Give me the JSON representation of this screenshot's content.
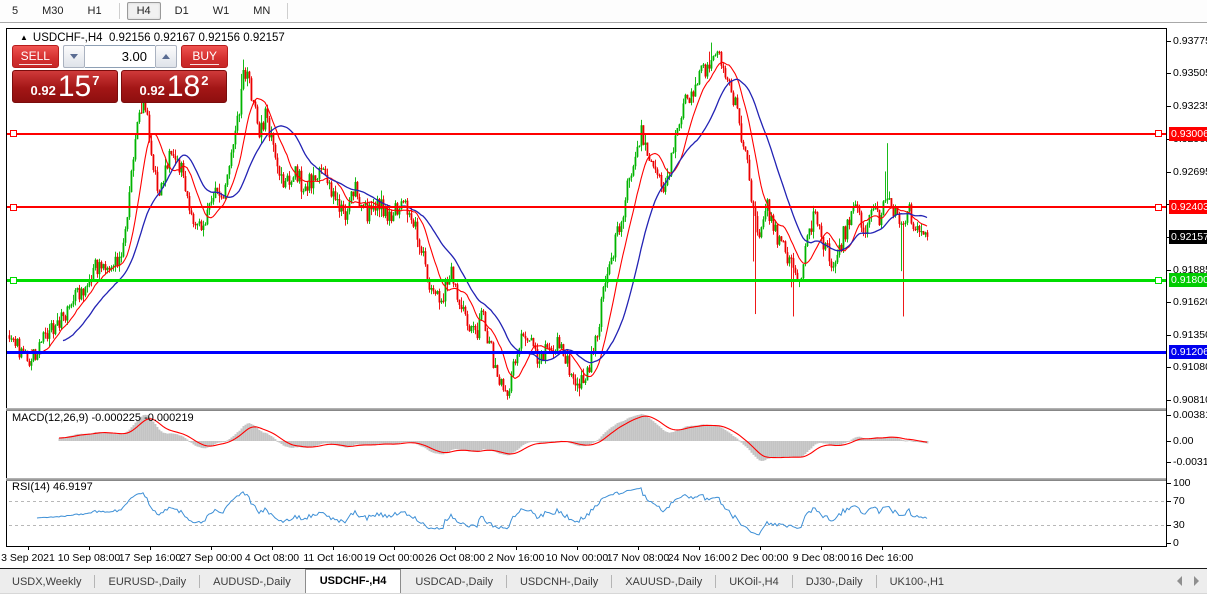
{
  "toolbar": {
    "timeframes": [
      "5",
      "M30",
      "H1",
      "H4",
      "D1",
      "W1",
      "MN"
    ],
    "active": "H4",
    "separators_before": [
      "H4"
    ],
    "separator_after_last": true
  },
  "chart": {
    "collapse_arrow": "▲",
    "symbol": "USDCHF-,H4",
    "ohlc": "0.92156 0.92167 0.92156 0.92157"
  },
  "trade_panel": {
    "sell_label": "SELL",
    "buy_label": "BUY",
    "volume": "3.00",
    "sell_price": {
      "prefix": "0.92",
      "big": "15",
      "sup": "7"
    },
    "buy_price": {
      "prefix": "0.92",
      "big": "18",
      "sup": "2"
    }
  },
  "price_axis": {
    "ticks": [
      "0.93775",
      "0.93505",
      "0.93235",
      "0.92965",
      "0.92695",
      "0.92425",
      "0.92155",
      "0.91885",
      "0.91620",
      "0.91350",
      "0.91080",
      "0.90810"
    ],
    "badges": [
      {
        "label": "0.93006",
        "bg": "#ff0000",
        "fg": "#ffffff"
      },
      {
        "label": "0.92403",
        "bg": "#ff0000",
        "fg": "#ffffff"
      },
      {
        "label": "0.92157",
        "bg": "#000000",
        "fg": "#ffffff"
      },
      {
        "label": "0.91800",
        "bg": "#00cc00",
        "fg": "#ffffff"
      },
      {
        "label": "0.91206",
        "bg": "#0000ee",
        "fg": "#ffffff"
      }
    ]
  },
  "time_axis": {
    "labels": [
      "3 Sep 2021",
      "10 Sep 08:00",
      "17 Sep 16:00",
      "27 Sep 00:00",
      "4 Oct 08:00",
      "11 Oct 16:00",
      "19 Oct 00:00",
      "26 Oct 08:00",
      "2 Nov 16:00",
      "10 Nov 00:00",
      "17 Nov 08:00",
      "24 Nov 16:00",
      "2 Dec 00:00",
      "9 Dec 08:00",
      "16 Dec 16:00"
    ]
  },
  "macd_pane": {
    "label": "MACD(12,26,9) -0.000225 -0.000219",
    "axis": [
      {
        "text": "0.003811",
        "value": 0.003811
      },
      {
        "text": "0.00",
        "value": 0
      },
      {
        "text": "-0.003115",
        "value": -0.003115
      }
    ]
  },
  "rsi_pane": {
    "label": "RSI(14) 46.9197",
    "axis": [
      {
        "text": "100",
        "value": 100
      },
      {
        "text": "70",
        "value": 70
      },
      {
        "text": "30",
        "value": 30
      },
      {
        "text": "0",
        "value": 0
      }
    ],
    "dashed_levels": [
      70,
      30
    ]
  },
  "tabs": {
    "items": [
      "USDX,Weekly",
      "EURUSD-,Daily",
      "AUDUSD-,Daily",
      "USDCHF-,H4",
      "USDCAD-,Daily",
      "USDCNH-,Daily",
      "XAUUSD-,Daily",
      "UKOil-,H4",
      "DJ30-,Daily",
      "UK100-,H1"
    ],
    "active": "USDCHF-,H4"
  },
  "colors": {
    "candle_up": "#00b400",
    "candle_down": "#ec0000",
    "ma_fast": "#ff0000",
    "ma_slow": "#2323b4",
    "macd_hist": "#c4c4c4",
    "macd_signal": "#ff0000",
    "rsi_line": "#3d8fd6",
    "rsi_dash": "#b8b8b8",
    "level_red": "#ff0000",
    "level_green": "#00dd00",
    "level_blue": "#0000ff"
  },
  "chart_data": {
    "type": "candlestick",
    "symbol": "USDCHF",
    "timeframe": "H4",
    "open": 0.92156,
    "high": 0.92167,
    "low": 0.92156,
    "close": 0.92157,
    "bid": 0.92157,
    "ask": 0.92182,
    "price_axis_range": {
      "top": 0.93872,
      "bottom": 0.90753
    },
    "axis_tick_step": 0.0027,
    "horizontal_levels": [
      {
        "price": 0.93006,
        "color": "#ff0000",
        "thickness": 2,
        "handles": true
      },
      {
        "price": 0.92403,
        "color": "#ff0000",
        "thickness": 2,
        "handles": true
      },
      {
        "price": 0.918,
        "color": "#00dd00",
        "thickness": 3,
        "handles": true
      },
      {
        "price": 0.91206,
        "color": "#0000ff",
        "thickness": 3,
        "handles": false
      }
    ],
    "current_price_marker": 0.92157,
    "bars_total": 460,
    "price_path_anchors": [
      [
        0.0,
        0.9137
      ],
      [
        0.011,
        0.9121
      ],
      [
        0.024,
        0.9112
      ],
      [
        0.043,
        0.914
      ],
      [
        0.059,
        0.9152
      ],
      [
        0.083,
        0.9178
      ],
      [
        0.1,
        0.9198
      ],
      [
        0.113,
        0.9185
      ],
      [
        0.128,
        0.9222
      ],
      [
        0.139,
        0.9312
      ],
      [
        0.147,
        0.9328
      ],
      [
        0.157,
        0.9268
      ],
      [
        0.165,
        0.9253
      ],
      [
        0.178,
        0.9292
      ],
      [
        0.189,
        0.9268
      ],
      [
        0.2,
        0.9232
      ],
      [
        0.211,
        0.9222
      ],
      [
        0.222,
        0.9252
      ],
      [
        0.23,
        0.924
      ],
      [
        0.241,
        0.9288
      ],
      [
        0.25,
        0.9318
      ],
      [
        0.255,
        0.9356
      ],
      [
        0.263,
        0.9338
      ],
      [
        0.272,
        0.9298
      ],
      [
        0.279,
        0.9318
      ],
      [
        0.289,
        0.9288
      ],
      [
        0.3,
        0.9256
      ],
      [
        0.311,
        0.9272
      ],
      [
        0.322,
        0.9254
      ],
      [
        0.333,
        0.9268
      ],
      [
        0.343,
        0.9278
      ],
      [
        0.354,
        0.9246
      ],
      [
        0.365,
        0.9232
      ],
      [
        0.376,
        0.9258
      ],
      [
        0.389,
        0.9234
      ],
      [
        0.402,
        0.9246
      ],
      [
        0.415,
        0.9228
      ],
      [
        0.426,
        0.9248
      ],
      [
        0.437,
        0.9236
      ],
      [
        0.448,
        0.9205
      ],
      [
        0.459,
        0.9174
      ],
      [
        0.47,
        0.9158
      ],
      [
        0.48,
        0.9186
      ],
      [
        0.489,
        0.9168
      ],
      [
        0.498,
        0.9152
      ],
      [
        0.507,
        0.9134
      ],
      [
        0.515,
        0.915
      ],
      [
        0.526,
        0.9118
      ],
      [
        0.537,
        0.9094
      ],
      [
        0.543,
        0.9086
      ],
      [
        0.553,
        0.9122
      ],
      [
        0.564,
        0.9136
      ],
      [
        0.577,
        0.9114
      ],
      [
        0.587,
        0.913
      ],
      [
        0.598,
        0.9124
      ],
      [
        0.609,
        0.911
      ],
      [
        0.62,
        0.9088
      ],
      [
        0.629,
        0.9104
      ],
      [
        0.637,
        0.9125
      ],
      [
        0.646,
        0.9162
      ],
      [
        0.654,
        0.9192
      ],
      [
        0.663,
        0.9218
      ],
      [
        0.672,
        0.9252
      ],
      [
        0.68,
        0.9282
      ],
      [
        0.689,
        0.9302
      ],
      [
        0.698,
        0.9284
      ],
      [
        0.705,
        0.9268
      ],
      [
        0.713,
        0.9256
      ],
      [
        0.722,
        0.9282
      ],
      [
        0.73,
        0.9312
      ],
      [
        0.738,
        0.9328
      ],
      [
        0.747,
        0.9342
      ],
      [
        0.754,
        0.936
      ],
      [
        0.761,
        0.9352
      ],
      [
        0.768,
        0.9368
      ],
      [
        0.777,
        0.9358
      ],
      [
        0.785,
        0.9344
      ],
      [
        0.793,
        0.9318
      ],
      [
        0.801,
        0.929
      ],
      [
        0.809,
        0.9242
      ],
      [
        0.817,
        0.9222
      ],
      [
        0.824,
        0.9246
      ],
      [
        0.831,
        0.923
      ],
      [
        0.839,
        0.9212
      ],
      [
        0.848,
        0.9198
      ],
      [
        0.855,
        0.9186
      ],
      [
        0.863,
        0.9188
      ],
      [
        0.872,
        0.9222
      ],
      [
        0.879,
        0.9236
      ],
      [
        0.887,
        0.9212
      ],
      [
        0.896,
        0.919
      ],
      [
        0.904,
        0.9208
      ],
      [
        0.913,
        0.9224
      ],
      [
        0.922,
        0.9238
      ],
      [
        0.93,
        0.9218
      ],
      [
        0.939,
        0.924
      ],
      [
        0.948,
        0.9232
      ],
      [
        0.957,
        0.9252
      ],
      [
        0.965,
        0.9236
      ],
      [
        0.972,
        0.922
      ],
      [
        0.98,
        0.9238
      ],
      [
        0.989,
        0.9222
      ],
      [
        1.0,
        0.92157
      ]
    ],
    "wick_spikes": [
      [
        0.147,
        0.9332,
        1
      ],
      [
        0.255,
        0.9362,
        1
      ],
      [
        0.765,
        0.9376,
        1
      ],
      [
        0.812,
        0.9152,
        -1
      ],
      [
        0.855,
        0.915,
        -1
      ],
      [
        0.957,
        0.9293,
        1
      ],
      [
        0.974,
        0.915,
        -1
      ]
    ],
    "indicators": {
      "ma_fast_period": 12,
      "ma_slow_period": 28,
      "macd": {
        "fast": 12,
        "slow": 26,
        "signal": 9,
        "value": -0.000225,
        "signal_value": -0.000219
      },
      "rsi": {
        "period": 14,
        "value": 46.9197
      }
    }
  }
}
